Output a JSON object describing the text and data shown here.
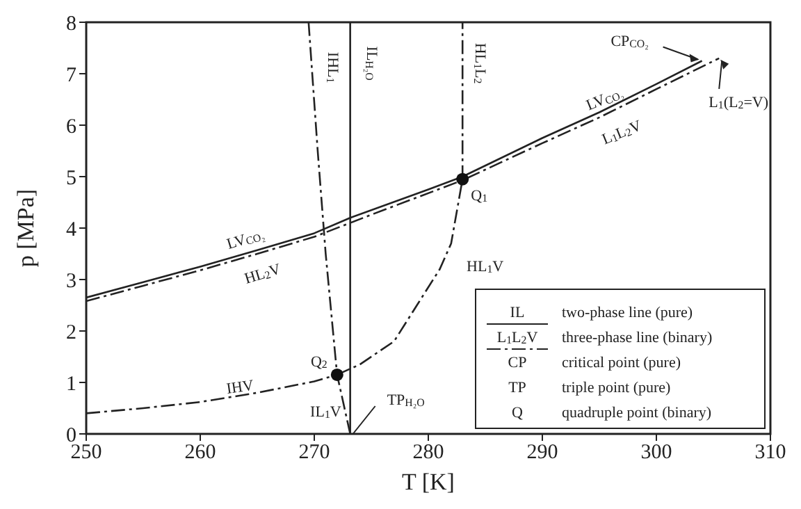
{
  "chart_data": {
    "type": "line",
    "xlabel": "T [K]",
    "ylabel": "p [MPa]",
    "xlim": [
      250,
      310
    ],
    "xticks": [
      250,
      260,
      270,
      280,
      290,
      300,
      310
    ],
    "ylim": [
      0,
      8
    ],
    "yticks": [
      0,
      1,
      2,
      3,
      4,
      5,
      6,
      7,
      8
    ],
    "grid": false,
    "legend": false,
    "marker": "none",
    "series": [
      {
        "color": "#222222",
        "line_style": "solid",
        "x": [
          250,
          255,
          260,
          265,
          270,
          273.15,
          280,
          283,
          290,
          295,
          300,
          304
        ],
        "values": [
          2.65,
          2.95,
          3.25,
          3.57,
          3.9,
          4.2,
          4.75,
          5.0,
          5.75,
          6.25,
          6.8,
          7.25
        ]
      },
      {
        "color": "#222222",
        "line_style": "dashed",
        "x": [
          250,
          255,
          260,
          265,
          270,
          275,
          283,
          290,
          295,
          300,
          305.5
        ],
        "values": [
          2.58,
          2.88,
          3.18,
          3.5,
          3.83,
          4.26,
          4.93,
          5.65,
          6.15,
          6.7,
          7.3
        ]
      },
      {
        "color": "#222222",
        "line_style": "solid",
        "x": [
          273.15,
          273.15
        ],
        "values": [
          0,
          8
        ]
      },
      {
        "color": "#222222",
        "line_style": "dashed",
        "x": [
          273.15,
          272,
          271,
          270.3,
          269.5
        ],
        "values": [
          0,
          1.15,
          3.5,
          5.5,
          8
        ]
      },
      {
        "color": "#222222",
        "line_style": "dashed",
        "x": [
          283,
          283
        ],
        "values": [
          4.95,
          8
        ]
      },
      {
        "color": "#222222",
        "line_style": "dashed",
        "x": [
          250,
          255,
          260,
          265,
          270,
          272
        ],
        "values": [
          0.4,
          0.5,
          0.62,
          0.8,
          1.02,
          1.15
        ]
      },
      {
        "color": "#222222",
        "line_style": "dashed",
        "x": [
          272,
          274,
          277,
          279,
          281,
          282,
          283
        ],
        "values": [
          1.15,
          1.35,
          1.8,
          2.5,
          3.2,
          3.7,
          4.95
        ]
      },
      {
        "type": "scatter",
        "color": "#111111",
        "marker": "circle",
        "x": [
          283,
          272
        ],
        "values": [
          4.95,
          1.15
        ]
      }
    ],
    "annotations": [
      {
        "text": "CP$_{CO₂}$",
        "x": 304,
        "y": 7.25
      },
      {
        "text": "L$_{1}$(L$_{2}$=V)",
        "x": 305.5,
        "y": 7.3
      },
      {
        "text": "Q$_{1}$",
        "x": 283,
        "y": 4.95
      },
      {
        "text": "Q$_{2}$",
        "x": 272,
        "y": 1.15
      },
      {
        "text": "TP$_{H₂O}$",
        "x": 273.15,
        "y": 0
      },
      "IHL$_{1}$",
      "IL$_{H₂O}$",
      "HL$_{1}$L$_{2}$",
      "LV$_{CO₂}$",
      "HL$_{2}$V",
      "LV$_{CO₂}$",
      "L$_{1}$L$_{2}$V",
      "IHV",
      "IL$_{1}$V",
      "HL$_{1}$V",
      "IL",
      "two-phase line (pure)",
      "L$_{1}$L$_{2}$V",
      "three-phase line (binary)",
      "CP",
      "critical point (pure)",
      "TP",
      "triple point (pure)",
      "Q",
      "quadruple point (binary)"
    ]
  }
}
